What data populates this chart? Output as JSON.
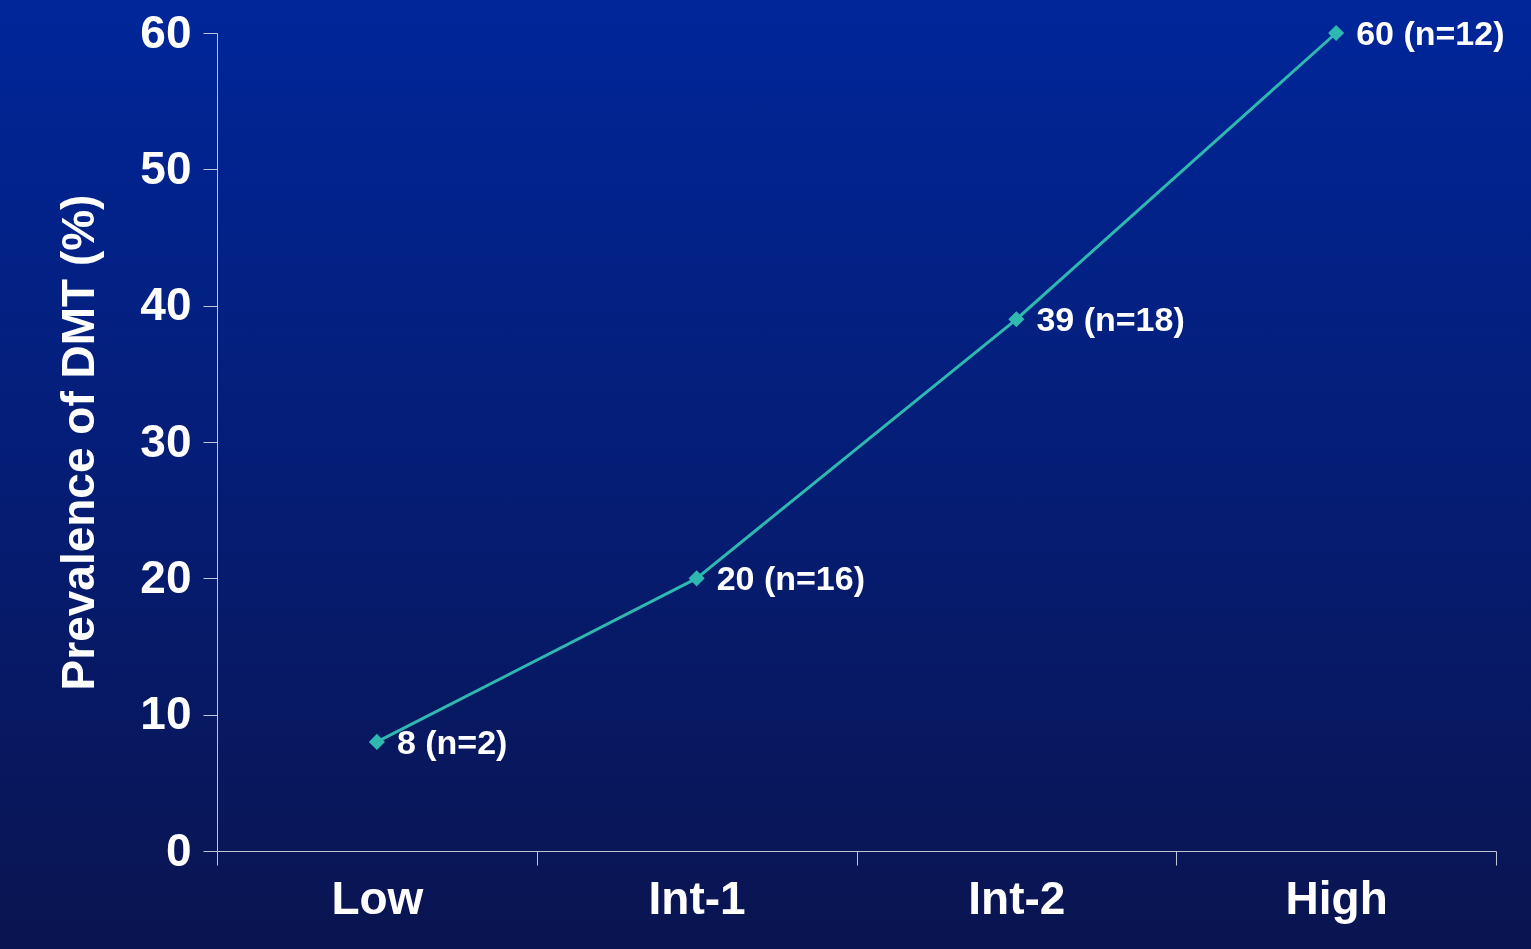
{
  "chart_data": {
    "type": "line",
    "ylabel": "Prevalence of DMT (%)",
    "categories": [
      "Low",
      "Int-1",
      "Int-2",
      "High"
    ],
    "values": [
      8,
      20,
      39,
      60
    ],
    "value_labels": [
      "8 (n=2)",
      "20 (n=16)",
      "39 (n=18)",
      "60 (n=12)"
    ],
    "color": "#2fb8b0",
    "marker": "diamond",
    "ylim": [
      0,
      60
    ],
    "yticks": [
      0,
      10,
      20,
      30,
      40,
      50,
      60
    ]
  }
}
